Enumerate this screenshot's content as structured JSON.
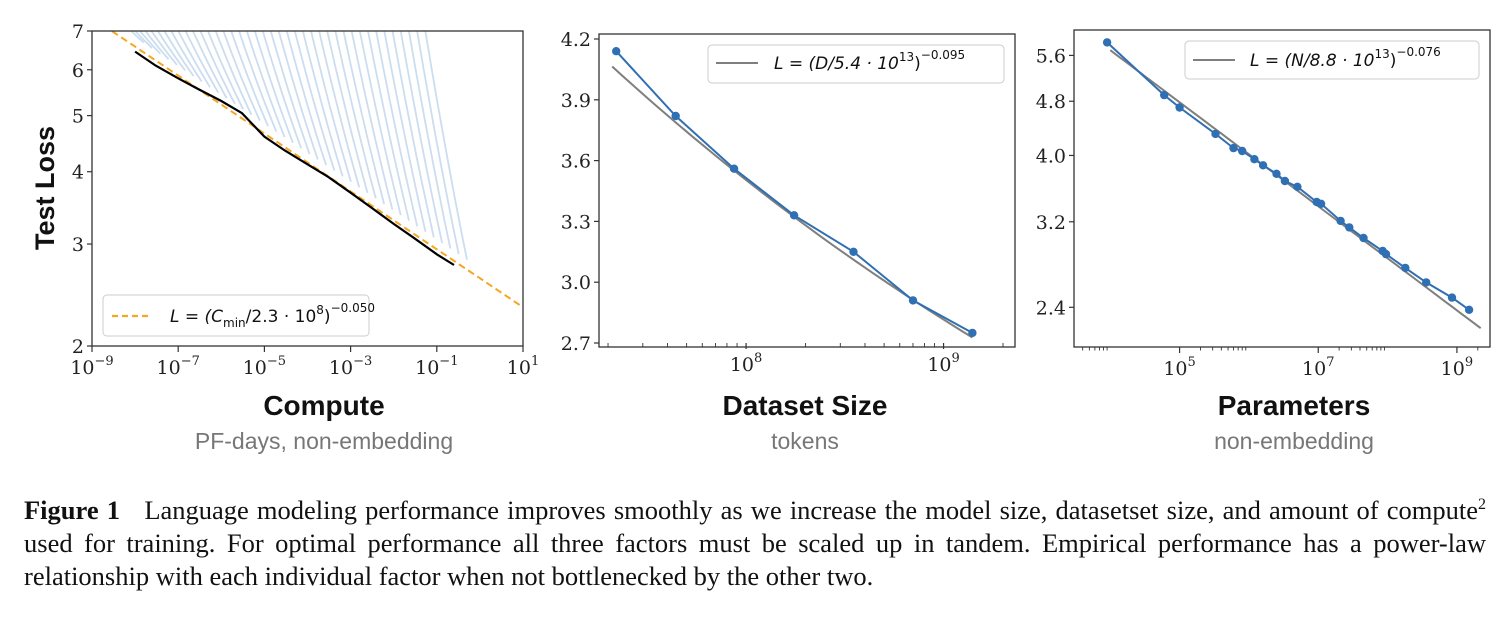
{
  "figure": {
    "label": "Figure 1",
    "caption_parts": {
      "before_sup": "Language modeling performance improves smoothly as we increase the model size, datasetset size, and amount of compute",
      "sup": "2",
      "after_sup": " used for training. For optimal performance all three factors must be scaled up in tandem. Empirical performance has a power-law relationship with each individual factor when not bottlenecked by the other two."
    }
  },
  "panels": [
    {
      "title": "Compute",
      "subtitle": "PF-days, non-embedding"
    },
    {
      "title": "Dataset Size",
      "subtitle": "tokens"
    },
    {
      "title": "Parameters",
      "subtitle": "non-embedding"
    }
  ],
  "colors": {
    "fit_orange": "#f5a623",
    "data_blue": "#2f6fb3",
    "curve_light_blue": "#8fb4dc",
    "fit_gray": "#7f7f7f",
    "frontier_black": "#000000"
  },
  "chart_data": [
    {
      "type": "line",
      "title": "Compute",
      "xlabel": "Compute",
      "xlabel_sub": "PF-days, non-embedding",
      "ylabel": "Test Loss",
      "xscale": "log",
      "yscale": "log",
      "xlim": [
        1e-09,
        10
      ],
      "ylim": [
        2,
        7
      ],
      "xticks": [
        1e-09,
        1e-07,
        1e-05,
        0.001,
        0.1,
        10
      ],
      "xtick_labels": [
        {
          "base": "10",
          "exp": "−9"
        },
        {
          "base": "10",
          "exp": "−7"
        },
        {
          "base": "10",
          "exp": "−5"
        },
        {
          "base": "10",
          "exp": "−3"
        },
        {
          "base": "10",
          "exp": "−1"
        },
        {
          "base": "10",
          "exp": "1"
        }
      ],
      "yticks": [
        2,
        3,
        4,
        5,
        6,
        7
      ],
      "ytick_labels": [
        "2",
        "3",
        "4",
        "5",
        "6",
        "7"
      ],
      "legend": {
        "position": "lower-left",
        "entries": [
          {
            "label_main": "L = (C",
            "label_sub": "min",
            "label_rest": "/2.3 · 10",
            "label_sup1": "8",
            "label_close": ")",
            "label_sup2": "−0.050",
            "style": "dashed-orange"
          }
        ]
      },
      "fit": {
        "name": "power-law fit",
        "scale": 230000000.0,
        "exponent": -0.05
      },
      "frontier": {
        "name": "compute-efficient frontier",
        "x": [
          1e-08,
          3e-08,
          1e-07,
          3e-07,
          1e-06,
          3e-06,
          1e-05,
          3e-05,
          0.0001,
          0.0003,
          0.001,
          0.003,
          0.01,
          0.03,
          0.1,
          0.25
        ],
        "y": [
          6.45,
          6.1,
          5.8,
          5.55,
          5.3,
          5.05,
          4.6,
          4.35,
          4.12,
          3.92,
          3.68,
          3.47,
          3.25,
          3.07,
          2.88,
          2.76
        ]
      },
      "training_curves_count": 40
    },
    {
      "type": "line",
      "title": "Dataset Size",
      "xlabel": "Dataset Size",
      "xlabel_sub": "tokens",
      "xscale": "log",
      "yscale": "linear",
      "xlim": [
        18000000.0,
        2300000000.0
      ],
      "ylim": [
        2.7,
        4.2
      ],
      "xticks": [
        100000000.0,
        1000000000.0
      ],
      "xtick_labels": [
        {
          "base": "10",
          "exp": "8"
        },
        {
          "base": "10",
          "exp": "9"
        }
      ],
      "yticks": [
        2.7,
        3.0,
        3.3,
        3.6,
        3.9,
        4.2
      ],
      "ytick_labels": [
        "2.7",
        "3.0",
        "3.3",
        "3.6",
        "3.9",
        "4.2"
      ],
      "legend": {
        "position": "top-right",
        "entries": [
          {
            "label_main": "L = (D/5.4 · 10",
            "label_sup1": "13",
            "label_close": ")",
            "label_sup2": "−0.095",
            "style": "solid-gray"
          }
        ]
      },
      "fit": {
        "name": "power-law fit",
        "scale": 54000000000000.0,
        "exponent": -0.095,
        "x_range": [
          21000000.0,
          1400000000.0
        ]
      },
      "series": [
        {
          "name": "measured",
          "x": [
            22000000.0,
            44000000.0,
            87000000.0,
            175000000.0,
            350000000.0,
            700000000.0,
            1400000000.0
          ],
          "y": [
            4.14,
            3.82,
            3.56,
            3.33,
            3.15,
            2.91,
            2.75
          ]
        }
      ]
    },
    {
      "type": "line",
      "title": "Parameters",
      "xlabel": "Parameters",
      "xlabel_sub": "non-embedding",
      "xscale": "log",
      "yscale": "log",
      "xlim": [
        3000.0,
        3000000000.0
      ],
      "ylim": [
        2.1,
        6.1
      ],
      "xticks": [
        100000.0,
        10000000.0,
        1000000000.0
      ],
      "xtick_labels": [
        {
          "base": "10",
          "exp": "5"
        },
        {
          "base": "10",
          "exp": "7"
        },
        {
          "base": "10",
          "exp": "9"
        }
      ],
      "yticks": [
        2.4,
        3.2,
        4.0,
        4.8,
        5.6
      ],
      "ytick_labels": [
        "2.4",
        "3.2",
        "4.0",
        "4.8",
        "5.6"
      ],
      "legend": {
        "position": "top-right",
        "entries": [
          {
            "label_main": "L = (N/8.8 · 10",
            "label_sup1": "13",
            "label_close": ")",
            "label_sup2": "−0.076",
            "style": "solid-gray"
          }
        ]
      },
      "fit": {
        "name": "power-law fit",
        "scale": 88000000000000.0,
        "exponent": -0.076,
        "x_range": [
          10000.0,
          2200000000.0
        ]
      },
      "series": [
        {
          "name": "measured",
          "x": [
            9000.0,
            60000.0,
            100000.0,
            330000.0,
            600000.0,
            800000.0,
            1200000.0,
            1600000.0,
            2500000.0,
            3300000.0,
            5000000.0,
            9500000.0,
            11000000.0,
            21000000.0,
            28000000.0,
            45000000.0,
            85000000.0,
            95000000.0,
            180000000.0,
            360000000.0,
            850000000.0,
            1500000000.0
          ],
          "y": [
            5.85,
            4.9,
            4.7,
            4.3,
            4.1,
            4.06,
            3.95,
            3.87,
            3.76,
            3.67,
            3.6,
            3.42,
            3.4,
            3.21,
            3.14,
            3.03,
            2.9,
            2.87,
            2.74,
            2.61,
            2.48,
            2.38
          ]
        }
      ]
    }
  ]
}
